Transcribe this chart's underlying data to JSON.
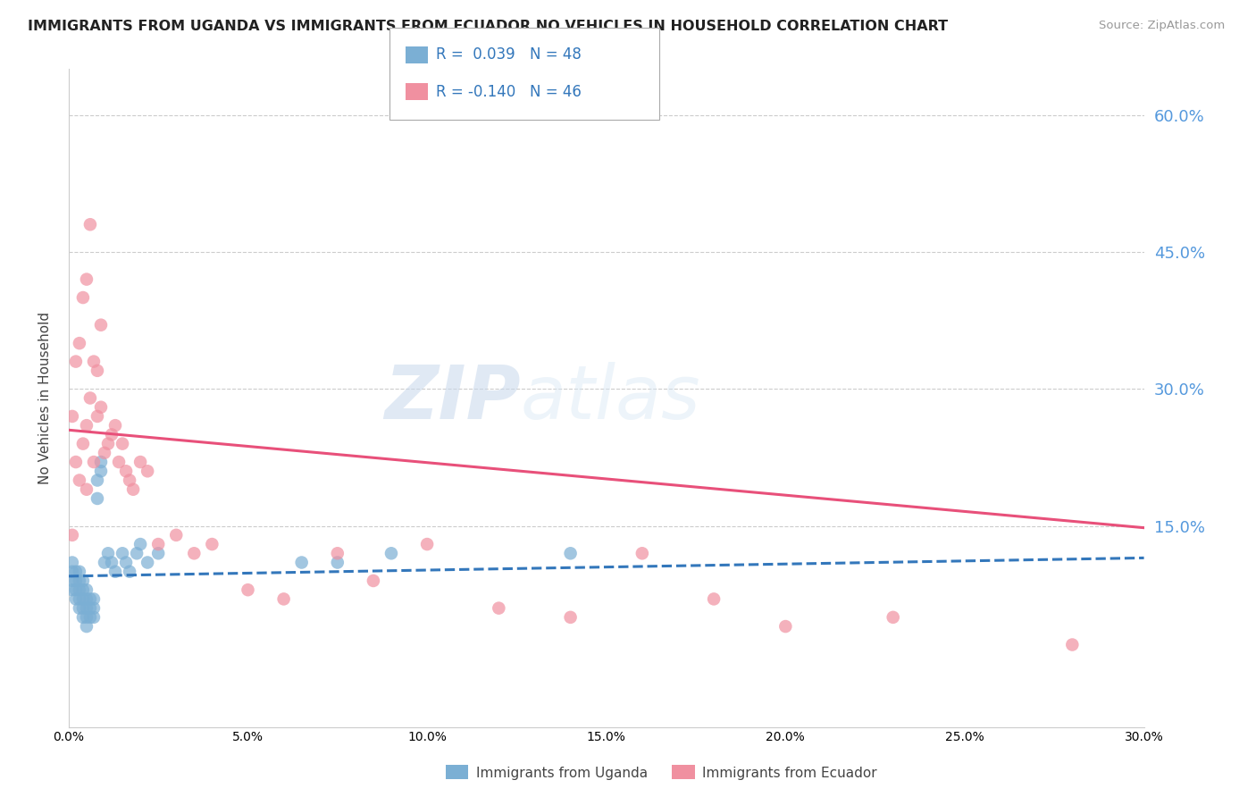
{
  "title": "IMMIGRANTS FROM UGANDA VS IMMIGRANTS FROM ECUADOR NO VEHICLES IN HOUSEHOLD CORRELATION CHART",
  "source": "Source: ZipAtlas.com",
  "ylabel": "No Vehicles in Household",
  "xmin": 0.0,
  "xmax": 0.3,
  "ymin": -0.07,
  "ymax": 0.65,
  "right_yticks": [
    0.6,
    0.45,
    0.3,
    0.15
  ],
  "right_yticklabels": [
    "60.0%",
    "45.0%",
    "30.0%",
    "15.0%"
  ],
  "uganda_color": "#7bafd4",
  "ecuador_color": "#f090a0",
  "uganda_trend_color": "#3377bb",
  "ecuador_trend_color": "#e8507a",
  "watermark_zip": "ZIP",
  "watermark_atlas": "atlas",
  "uganda_x": [
    0.001,
    0.001,
    0.001,
    0.001,
    0.002,
    0.002,
    0.002,
    0.002,
    0.003,
    0.003,
    0.003,
    0.003,
    0.003,
    0.004,
    0.004,
    0.004,
    0.004,
    0.004,
    0.005,
    0.005,
    0.005,
    0.005,
    0.005,
    0.006,
    0.006,
    0.006,
    0.007,
    0.007,
    0.007,
    0.008,
    0.008,
    0.009,
    0.009,
    0.01,
    0.011,
    0.012,
    0.013,
    0.015,
    0.016,
    0.017,
    0.019,
    0.02,
    0.022,
    0.025,
    0.065,
    0.075,
    0.09,
    0.14
  ],
  "uganda_y": [
    0.08,
    0.09,
    0.1,
    0.11,
    0.07,
    0.08,
    0.09,
    0.1,
    0.06,
    0.07,
    0.08,
    0.09,
    0.1,
    0.05,
    0.06,
    0.07,
    0.08,
    0.09,
    0.04,
    0.05,
    0.06,
    0.07,
    0.08,
    0.05,
    0.06,
    0.07,
    0.05,
    0.06,
    0.07,
    0.18,
    0.2,
    0.21,
    0.22,
    0.11,
    0.12,
    0.11,
    0.1,
    0.12,
    0.11,
    0.1,
    0.12,
    0.13,
    0.11,
    0.12,
    0.11,
    0.11,
    0.12,
    0.12
  ],
  "ecuador_x": [
    0.001,
    0.001,
    0.002,
    0.002,
    0.003,
    0.003,
    0.004,
    0.004,
    0.005,
    0.005,
    0.005,
    0.006,
    0.006,
    0.007,
    0.007,
    0.008,
    0.008,
    0.009,
    0.009,
    0.01,
    0.011,
    0.012,
    0.013,
    0.014,
    0.015,
    0.016,
    0.017,
    0.018,
    0.02,
    0.022,
    0.025,
    0.03,
    0.035,
    0.04,
    0.05,
    0.06,
    0.075,
    0.085,
    0.1,
    0.12,
    0.14,
    0.16,
    0.18,
    0.2,
    0.23,
    0.28
  ],
  "ecuador_y": [
    0.14,
    0.27,
    0.22,
    0.33,
    0.2,
    0.35,
    0.24,
    0.4,
    0.19,
    0.26,
    0.42,
    0.29,
    0.48,
    0.22,
    0.33,
    0.27,
    0.32,
    0.28,
    0.37,
    0.23,
    0.24,
    0.25,
    0.26,
    0.22,
    0.24,
    0.21,
    0.2,
    0.19,
    0.22,
    0.21,
    0.13,
    0.14,
    0.12,
    0.13,
    0.08,
    0.07,
    0.12,
    0.09,
    0.13,
    0.06,
    0.05,
    0.12,
    0.07,
    0.04,
    0.05,
    0.02
  ],
  "uganda_trend_start_y": 0.095,
  "uganda_trend_end_y": 0.115,
  "ecuador_trend_start_y": 0.255,
  "ecuador_trend_end_y": 0.148,
  "legend_r_uganda": "R =  0.039",
  "legend_n_uganda": "N = 48",
  "legend_r_ecuador": "R = -0.140",
  "legend_n_ecuador": "N = 46"
}
